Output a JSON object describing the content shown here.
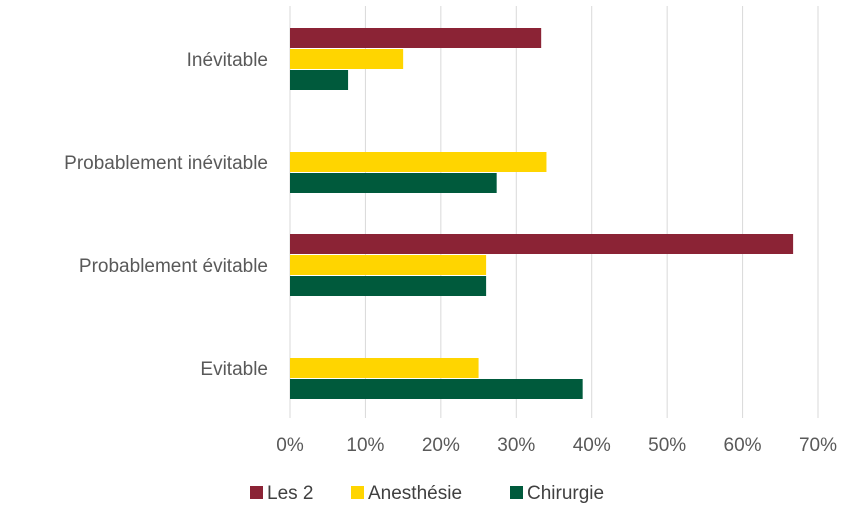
{
  "chart_data": {
    "type": "bar",
    "orientation": "horizontal",
    "categories": [
      "Inévitable",
      "Probablement inévitable",
      "Probablement évitable",
      "Evitable"
    ],
    "series": [
      {
        "name": "Les 2",
        "color": "#8b2335",
        "values": [
          33.3,
          0,
          66.7,
          0
        ]
      },
      {
        "name": "Anesthésie",
        "color": "#ffd500",
        "values": [
          15,
          34,
          26,
          25
        ]
      },
      {
        "name": "Chirurgie",
        "color": "#005a3c",
        "values": [
          7.7,
          27.4,
          26,
          38.8
        ]
      }
    ],
    "x_ticks": [
      "0%",
      "10%",
      "20%",
      "30%",
      "40%",
      "50%",
      "60%",
      "70%"
    ],
    "xlim": [
      0,
      70
    ],
    "x_unit": "%",
    "grid": true,
    "legend_position": "bottom"
  }
}
